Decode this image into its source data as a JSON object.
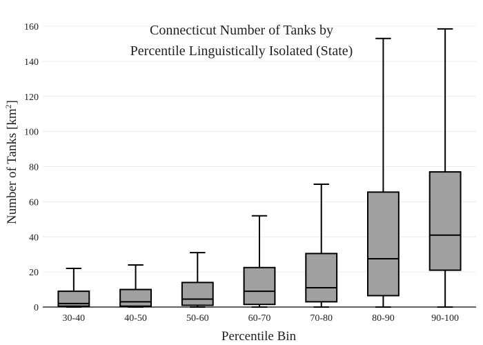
{
  "chart_data": {
    "type": "box",
    "title_lines": [
      "Connecticut Number of Tanks by",
      "Percentile Linguistically Isolated (State)"
    ],
    "xlabel": "Percentile Bin",
    "ylabel_text": "Number of Tanks  [km",
    "ylabel_sup": "2",
    "ylabel_close": "]",
    "ylim": [
      0,
      160
    ],
    "yticks": [
      0,
      20,
      40,
      60,
      80,
      100,
      120,
      140,
      160
    ],
    "grid": true,
    "box_fill": "#a0a0a0",
    "line_color": "#000000",
    "categories": [
      "30-40",
      "40-50",
      "50-60",
      "60-70",
      "70-80",
      "80-90",
      "90-100"
    ],
    "boxes": [
      {
        "min": 0,
        "q1": 0.5,
        "median": 2,
        "q3": 9,
        "max": 22
      },
      {
        "min": 0,
        "q1": 0.5,
        "median": 3,
        "q3": 10,
        "max": 24
      },
      {
        "min": 0,
        "q1": 1,
        "median": 4.5,
        "q3": 14,
        "max": 31
      },
      {
        "min": 0,
        "q1": 1.5,
        "median": 9,
        "q3": 22.5,
        "max": 52
      },
      {
        "min": 0,
        "q1": 3,
        "median": 11,
        "q3": 30.5,
        "max": 70
      },
      {
        "min": 0,
        "q1": 6.5,
        "median": 27.5,
        "q3": 65.5,
        "max": 153
      },
      {
        "min": 0,
        "q1": 21,
        "median": 41,
        "q3": 77,
        "max": 158.5
      }
    ]
  }
}
